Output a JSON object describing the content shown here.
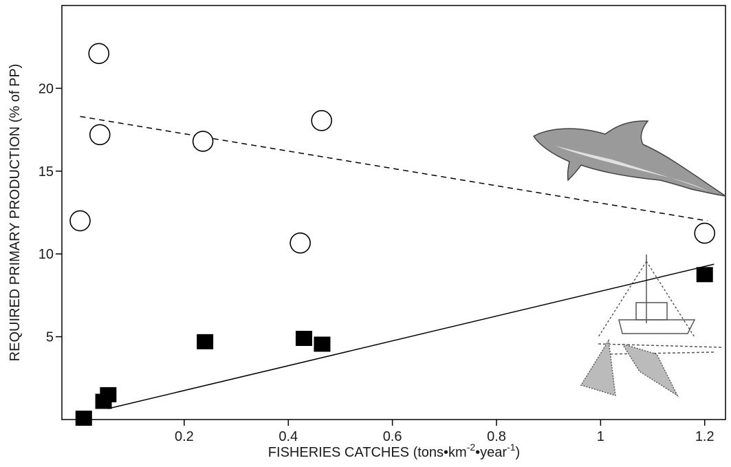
{
  "chart_data": {
    "type": "scatter",
    "xlabel_parts": [
      "FISHERIES CATCHES (tons•km",
      "-2",
      "•year",
      "-1",
      ")"
    ],
    "ylabel": "REQUIRED PRIMARY PRODUCTION (% of PP)",
    "xlim": [
      -0.035,
      1.24
    ],
    "ylim": [
      0,
      25
    ],
    "xticks": [
      0.2,
      0.4,
      0.6,
      0.8,
      1.0,
      1.2
    ],
    "yticks": [
      5,
      10,
      15,
      20
    ],
    "series": [
      {
        "marker": "open-circle",
        "color": "#000000",
        "x": [
          0.0,
          0.036,
          0.038,
          0.236,
          0.464,
          0.423,
          1.2
        ],
        "values": [
          12.0,
          22.1,
          17.2,
          16.8,
          18.05,
          10.66,
          11.25
        ]
      },
      {
        "marker": "filled-square",
        "color": "#000000",
        "x": [
          0.007,
          0.045,
          0.054,
          0.24,
          0.43,
          0.465,
          1.2
        ],
        "values": [
          0.08,
          1.1,
          1.5,
          4.7,
          4.9,
          4.55,
          8.75
        ]
      }
    ],
    "trend_lines": [
      {
        "dash": "dashed",
        "x": [
          0.0,
          1.205
        ],
        "values": [
          18.3,
          12.0
        ]
      },
      {
        "dash": "solid",
        "x": [
          0.054,
          1.218
        ],
        "values": [
          0.66,
          9.38
        ]
      }
    ]
  }
}
